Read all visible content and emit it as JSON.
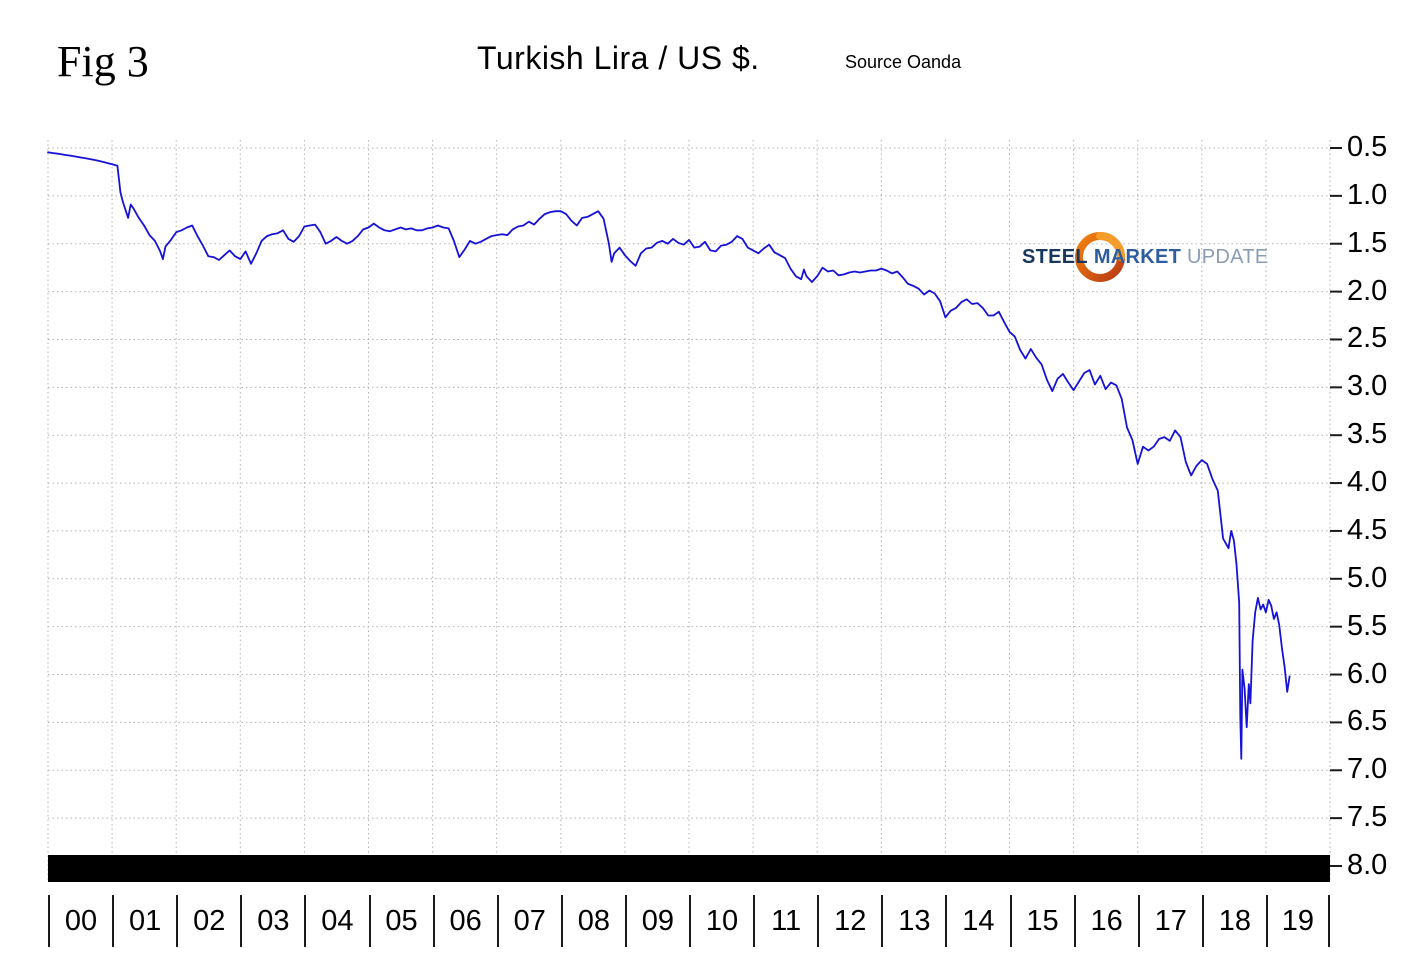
{
  "figure": {
    "fig_label": "Fig 3",
    "title": "Turkish Lira / US $.",
    "source": "Source Oanda"
  },
  "logo": {
    "steel": "STEEL",
    "market": "MARKET",
    "update": "UPDATE",
    "ring_color_outer": "#e2611b",
    "ring_color_inner": "#b93a14"
  },
  "chart_data": {
    "type": "line",
    "title": "Turkish Lira / US $.",
    "source": "Oanda",
    "x_range_years": [
      2000,
      2020
    ],
    "x_tick_labels": [
      "00",
      "01",
      "02",
      "03",
      "04",
      "05",
      "06",
      "07",
      "08",
      "09",
      "10",
      "11",
      "12",
      "13",
      "14",
      "15",
      "16",
      "17",
      "18",
      "19"
    ],
    "y_axis": {
      "min": 0.5,
      "max": 8.0,
      "step": 0.5,
      "inverted": true,
      "side": "right"
    },
    "y_tick_labels": [
      "0.5",
      "1.0",
      "1.5",
      "2.0",
      "2.5",
      "3.0",
      "3.5",
      "4.0",
      "4.5",
      "5.0",
      "5.5",
      "6.0",
      "6.5",
      "7.0",
      "7.5",
      "8.0"
    ],
    "grid": true,
    "legend": "none",
    "line_color": "#1612d6",
    "bottom_bar_color": "#000000",
    "series": [
      {
        "name": "Turkish Lira per US Dollar",
        "points": [
          [
            2000.0,
            0.545
          ],
          [
            2000.083,
            0.553
          ],
          [
            2000.167,
            0.561
          ],
          [
            2000.25,
            0.57
          ],
          [
            2000.333,
            0.578
          ],
          [
            2000.417,
            0.588
          ],
          [
            2000.5,
            0.598
          ],
          [
            2000.583,
            0.608
          ],
          [
            2000.667,
            0.618
          ],
          [
            2000.75,
            0.629
          ],
          [
            2000.833,
            0.641
          ],
          [
            2000.917,
            0.656
          ],
          [
            2001.0,
            0.67
          ],
          [
            2001.083,
            0.685
          ],
          [
            2001.13,
            0.96
          ],
          [
            2001.167,
            1.06
          ],
          [
            2001.21,
            1.15
          ],
          [
            2001.25,
            1.23
          ],
          [
            2001.29,
            1.09
          ],
          [
            2001.333,
            1.13
          ],
          [
            2001.417,
            1.23
          ],
          [
            2001.5,
            1.31
          ],
          [
            2001.583,
            1.41
          ],
          [
            2001.667,
            1.47
          ],
          [
            2001.75,
            1.58
          ],
          [
            2001.792,
            1.66
          ],
          [
            2001.833,
            1.53
          ],
          [
            2001.917,
            1.46
          ],
          [
            2002.0,
            1.38
          ],
          [
            2002.083,
            1.36
          ],
          [
            2002.167,
            1.33
          ],
          [
            2002.25,
            1.31
          ],
          [
            2002.333,
            1.42
          ],
          [
            2002.417,
            1.52
          ],
          [
            2002.5,
            1.63
          ],
          [
            2002.583,
            1.64
          ],
          [
            2002.667,
            1.67
          ],
          [
            2002.75,
            1.62
          ],
          [
            2002.833,
            1.57
          ],
          [
            2002.917,
            1.63
          ],
          [
            2003.0,
            1.66
          ],
          [
            2003.083,
            1.58
          ],
          [
            2003.167,
            1.71
          ],
          [
            2003.25,
            1.6
          ],
          [
            2003.333,
            1.47
          ],
          [
            2003.417,
            1.42
          ],
          [
            2003.5,
            1.4
          ],
          [
            2003.583,
            1.39
          ],
          [
            2003.667,
            1.36
          ],
          [
            2003.75,
            1.45
          ],
          [
            2003.833,
            1.48
          ],
          [
            2003.917,
            1.42
          ],
          [
            2004.0,
            1.32
          ],
          [
            2004.083,
            1.31
          ],
          [
            2004.167,
            1.3
          ],
          [
            2004.25,
            1.38
          ],
          [
            2004.333,
            1.5
          ],
          [
            2004.417,
            1.47
          ],
          [
            2004.5,
            1.43
          ],
          [
            2004.583,
            1.47
          ],
          [
            2004.667,
            1.5
          ],
          [
            2004.75,
            1.47
          ],
          [
            2004.833,
            1.42
          ],
          [
            2004.917,
            1.35
          ],
          [
            2005.0,
            1.33
          ],
          [
            2005.083,
            1.29
          ],
          [
            2005.167,
            1.33
          ],
          [
            2005.25,
            1.36
          ],
          [
            2005.333,
            1.37
          ],
          [
            2005.417,
            1.35
          ],
          [
            2005.5,
            1.33
          ],
          [
            2005.583,
            1.35
          ],
          [
            2005.667,
            1.34
          ],
          [
            2005.75,
            1.36
          ],
          [
            2005.833,
            1.36
          ],
          [
            2005.917,
            1.34
          ],
          [
            2006.0,
            1.33
          ],
          [
            2006.083,
            1.31
          ],
          [
            2006.167,
            1.33
          ],
          [
            2006.25,
            1.34
          ],
          [
            2006.333,
            1.47
          ],
          [
            2006.417,
            1.64
          ],
          [
            2006.5,
            1.56
          ],
          [
            2006.583,
            1.47
          ],
          [
            2006.667,
            1.5
          ],
          [
            2006.75,
            1.48
          ],
          [
            2006.833,
            1.45
          ],
          [
            2006.917,
            1.42
          ],
          [
            2007.0,
            1.41
          ],
          [
            2007.083,
            1.4
          ],
          [
            2007.167,
            1.41
          ],
          [
            2007.25,
            1.35
          ],
          [
            2007.333,
            1.32
          ],
          [
            2007.417,
            1.31
          ],
          [
            2007.5,
            1.27
          ],
          [
            2007.583,
            1.3
          ],
          [
            2007.667,
            1.24
          ],
          [
            2007.75,
            1.19
          ],
          [
            2007.833,
            1.17
          ],
          [
            2007.917,
            1.16
          ],
          [
            2008.0,
            1.16
          ],
          [
            2008.083,
            1.19
          ],
          [
            2008.167,
            1.26
          ],
          [
            2008.25,
            1.31
          ],
          [
            2008.333,
            1.23
          ],
          [
            2008.417,
            1.22
          ],
          [
            2008.5,
            1.19
          ],
          [
            2008.583,
            1.16
          ],
          [
            2008.667,
            1.24
          ],
          [
            2008.75,
            1.5
          ],
          [
            2008.792,
            1.69
          ],
          [
            2008.833,
            1.6
          ],
          [
            2008.917,
            1.54
          ],
          [
            2009.0,
            1.62
          ],
          [
            2009.083,
            1.68
          ],
          [
            2009.167,
            1.73
          ],
          [
            2009.25,
            1.6
          ],
          [
            2009.333,
            1.55
          ],
          [
            2009.417,
            1.54
          ],
          [
            2009.5,
            1.49
          ],
          [
            2009.583,
            1.47
          ],
          [
            2009.667,
            1.5
          ],
          [
            2009.75,
            1.45
          ],
          [
            2009.833,
            1.49
          ],
          [
            2009.917,
            1.51
          ],
          [
            2010.0,
            1.46
          ],
          [
            2010.083,
            1.54
          ],
          [
            2010.167,
            1.53
          ],
          [
            2010.25,
            1.48
          ],
          [
            2010.333,
            1.57
          ],
          [
            2010.417,
            1.58
          ],
          [
            2010.5,
            1.52
          ],
          [
            2010.583,
            1.51
          ],
          [
            2010.667,
            1.48
          ],
          [
            2010.75,
            1.42
          ],
          [
            2010.833,
            1.45
          ],
          [
            2010.917,
            1.54
          ],
          [
            2011.0,
            1.57
          ],
          [
            2011.083,
            1.6
          ],
          [
            2011.167,
            1.55
          ],
          [
            2011.25,
            1.51
          ],
          [
            2011.333,
            1.59
          ],
          [
            2011.417,
            1.62
          ],
          [
            2011.5,
            1.65
          ],
          [
            2011.583,
            1.76
          ],
          [
            2011.667,
            1.84
          ],
          [
            2011.75,
            1.87
          ],
          [
            2011.792,
            1.77
          ],
          [
            2011.833,
            1.84
          ],
          [
            2011.917,
            1.9
          ],
          [
            2012.0,
            1.84
          ],
          [
            2012.083,
            1.75
          ],
          [
            2012.167,
            1.79
          ],
          [
            2012.25,
            1.78
          ],
          [
            2012.333,
            1.83
          ],
          [
            2012.417,
            1.82
          ],
          [
            2012.5,
            1.8
          ],
          [
            2012.583,
            1.79
          ],
          [
            2012.667,
            1.8
          ],
          [
            2012.75,
            1.79
          ],
          [
            2012.833,
            1.78
          ],
          [
            2012.917,
            1.78
          ],
          [
            2013.0,
            1.76
          ],
          [
            2013.083,
            1.78
          ],
          [
            2013.167,
            1.81
          ],
          [
            2013.25,
            1.79
          ],
          [
            2013.333,
            1.85
          ],
          [
            2013.417,
            1.92
          ],
          [
            2013.5,
            1.94
          ],
          [
            2013.583,
            1.97
          ],
          [
            2013.667,
            2.03
          ],
          [
            2013.75,
            1.99
          ],
          [
            2013.833,
            2.02
          ],
          [
            2013.917,
            2.1
          ],
          [
            2014.0,
            2.27
          ],
          [
            2014.083,
            2.2
          ],
          [
            2014.167,
            2.17
          ],
          [
            2014.25,
            2.11
          ],
          [
            2014.333,
            2.08
          ],
          [
            2014.417,
            2.13
          ],
          [
            2014.5,
            2.12
          ],
          [
            2014.583,
            2.17
          ],
          [
            2014.667,
            2.25
          ],
          [
            2014.75,
            2.25
          ],
          [
            2014.833,
            2.21
          ],
          [
            2014.917,
            2.32
          ],
          [
            2015.0,
            2.42
          ],
          [
            2015.083,
            2.47
          ],
          [
            2015.167,
            2.61
          ],
          [
            2015.25,
            2.7
          ],
          [
            2015.333,
            2.6
          ],
          [
            2015.417,
            2.69
          ],
          [
            2015.5,
            2.76
          ],
          [
            2015.583,
            2.92
          ],
          [
            2015.667,
            3.04
          ],
          [
            2015.75,
            2.91
          ],
          [
            2015.833,
            2.86
          ],
          [
            2015.917,
            2.95
          ],
          [
            2016.0,
            3.03
          ],
          [
            2016.083,
            2.94
          ],
          [
            2016.167,
            2.85
          ],
          [
            2016.25,
            2.82
          ],
          [
            2016.333,
            2.97
          ],
          [
            2016.417,
            2.88
          ],
          [
            2016.5,
            3.02
          ],
          [
            2016.583,
            2.95
          ],
          [
            2016.667,
            2.98
          ],
          [
            2016.75,
            3.12
          ],
          [
            2016.833,
            3.42
          ],
          [
            2016.917,
            3.55
          ],
          [
            2017.0,
            3.8
          ],
          [
            2017.083,
            3.62
          ],
          [
            2017.167,
            3.66
          ],
          [
            2017.25,
            3.62
          ],
          [
            2017.333,
            3.54
          ],
          [
            2017.417,
            3.52
          ],
          [
            2017.5,
            3.56
          ],
          [
            2017.583,
            3.45
          ],
          [
            2017.667,
            3.52
          ],
          [
            2017.75,
            3.78
          ],
          [
            2017.833,
            3.92
          ],
          [
            2017.917,
            3.82
          ],
          [
            2018.0,
            3.76
          ],
          [
            2018.083,
            3.8
          ],
          [
            2018.167,
            3.96
          ],
          [
            2018.25,
            4.08
          ],
          [
            2018.333,
            4.58
          ],
          [
            2018.417,
            4.68
          ],
          [
            2018.458,
            4.5
          ],
          [
            2018.5,
            4.6
          ],
          [
            2018.542,
            4.85
          ],
          [
            2018.583,
            5.25
          ],
          [
            2018.6,
            6.45
          ],
          [
            2018.617,
            6.88
          ],
          [
            2018.633,
            5.95
          ],
          [
            2018.667,
            6.15
          ],
          [
            2018.7,
            6.55
          ],
          [
            2018.733,
            6.1
          ],
          [
            2018.758,
            6.3
          ],
          [
            2018.792,
            5.65
          ],
          [
            2018.833,
            5.35
          ],
          [
            2018.875,
            5.2
          ],
          [
            2018.917,
            5.32
          ],
          [
            2018.958,
            5.27
          ],
          [
            2019.0,
            5.35
          ],
          [
            2019.042,
            5.22
          ],
          [
            2019.083,
            5.28
          ],
          [
            2019.125,
            5.42
          ],
          [
            2019.167,
            5.35
          ],
          [
            2019.208,
            5.48
          ],
          [
            2019.25,
            5.72
          ],
          [
            2019.292,
            5.92
          ],
          [
            2019.333,
            6.18
          ],
          [
            2019.37,
            6.02
          ]
        ]
      }
    ]
  }
}
